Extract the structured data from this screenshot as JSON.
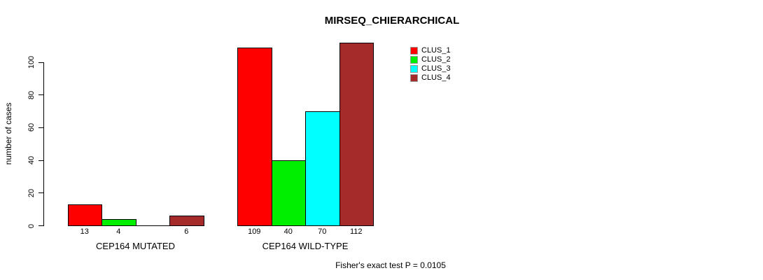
{
  "footnote": "Fisher's exact test P = 0.0105",
  "chart_data": {
    "type": "bar",
    "title": "MIRSEQ_CHIERARCHICAL",
    "ylabel": "number of cases",
    "xlabel": "",
    "categories": [
      "CEP164 MUTATED",
      "CEP164 WILD-TYPE"
    ],
    "series": [
      {
        "name": "CLUS_1",
        "color": "#FF0000",
        "values": [
          13,
          109
        ]
      },
      {
        "name": "CLUS_2",
        "color": "#00EE00",
        "values": [
          4,
          40
        ]
      },
      {
        "name": "CLUS_3",
        "color": "#00FFFF",
        "values": [
          0,
          70
        ]
      },
      {
        "name": "CLUS_4",
        "color": "#A52A2A",
        "values": [
          6,
          112
        ]
      }
    ],
    "bar_value_labels": [
      [
        "13",
        "4",
        "",
        "6"
      ],
      [
        "109",
        "40",
        "70",
        "112"
      ]
    ],
    "yticks": [
      0,
      20,
      40,
      60,
      80,
      100
    ],
    "ylim": [
      0,
      115
    ],
    "grid": false,
    "legend_position": "top-right",
    "bar_border_color": "#000000",
    "background_color": "#FFFFFF",
    "annotation": "Fisher's exact test P = 0.0105"
  }
}
